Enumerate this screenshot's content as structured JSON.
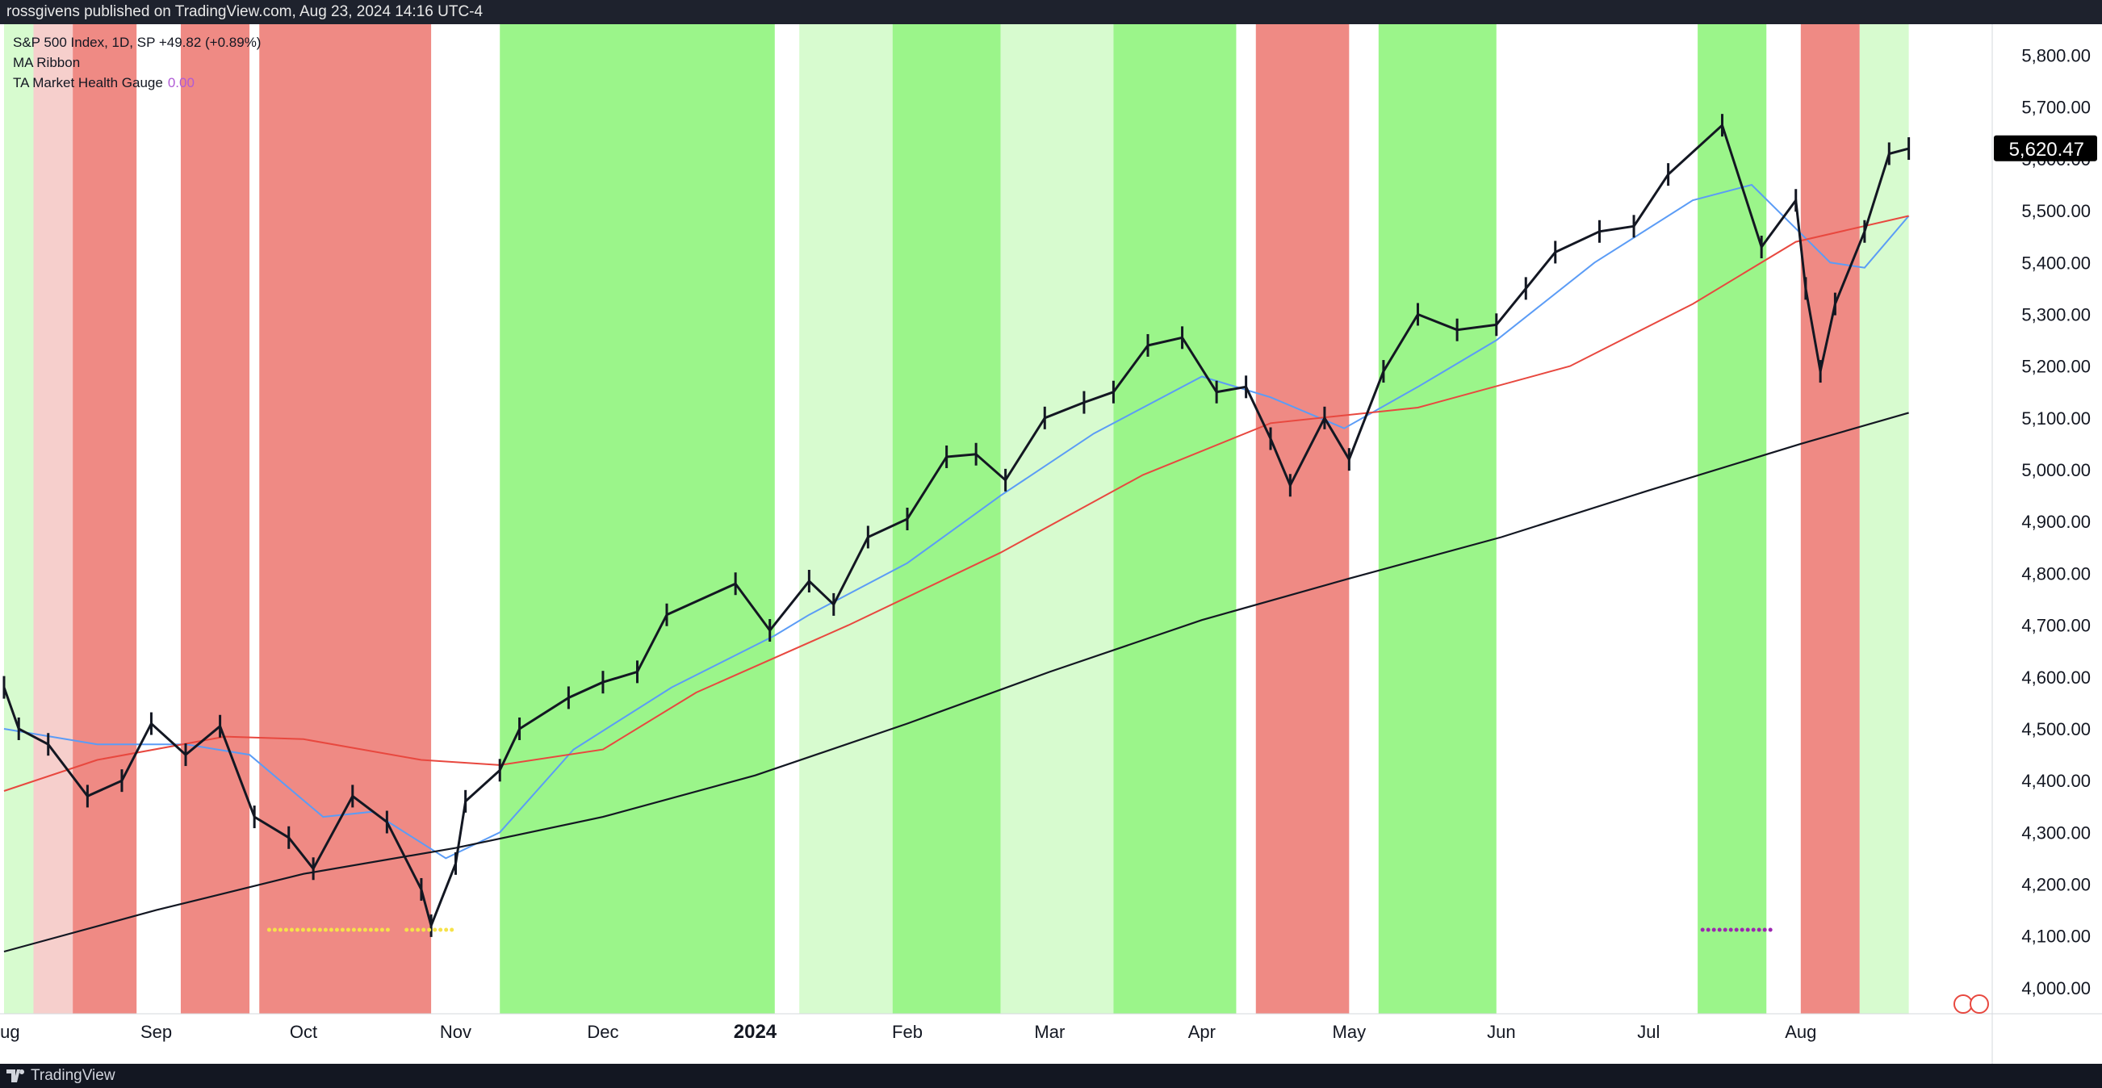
{
  "header": {
    "text": "rossgivens published on TradingView.com, Aug 23, 2024 14:16 UTC-4"
  },
  "legend": {
    "symbol_line": "S&P 500 Index, 1D, SP  +49.82 (+0.89%)",
    "ma_label": "MA Ribbon",
    "gauge_label": "TA Market Health Gauge",
    "gauge_value": "0.00"
  },
  "footer": {
    "brand": "TradingView"
  },
  "colors": {
    "price": "#131722",
    "ma_short": "#5b9cf6",
    "ma_mid": "#e8483f",
    "ma_long": "#131722",
    "band_strong_green": "#9bf58a",
    "band_light_green": "#d7fbcf",
    "band_strong_red": "#ef8a84",
    "band_light_red": "#f6cfcc",
    "price_tag_bg": "#000000",
    "dots_yellow": "#f6e24a",
    "dots_purple": "#9c27b0"
  },
  "chart_data": {
    "type": "line",
    "title": "S&P 500 Index, 1D, SP",
    "x_range": [
      "2023-08-01",
      "2024-09-09"
    ],
    "ylim": [
      3950,
      5860
    ],
    "y_ticks": [
      4000,
      4100,
      4200,
      4300,
      4400,
      4500,
      4600,
      4700,
      4800,
      4900,
      5000,
      5100,
      5200,
      5300,
      5400,
      5500,
      5600,
      5700,
      5800
    ],
    "y_tick_labels": [
      "4,000.00",
      "4,100.00",
      "4,200.00",
      "4,300.00",
      "4,400.00",
      "4,500.00",
      "4,600.00",
      "4,700.00",
      "4,800.00",
      "4,900.00",
      "5,000.00",
      "5,100.00",
      "5,200.00",
      "5,300.00",
      "5,400.00",
      "5,500.00",
      "5,600.00",
      "5,700.00",
      "5,800.00"
    ],
    "x_ticks": [
      {
        "date": "2023-08-01",
        "label": "Aug"
      },
      {
        "date": "2023-09-01",
        "label": "Sep"
      },
      {
        "date": "2023-10-01",
        "label": "Oct"
      },
      {
        "date": "2023-11-01",
        "label": "Nov"
      },
      {
        "date": "2023-12-01",
        "label": "Dec"
      },
      {
        "date": "2024-01-01",
        "label": "2024"
      },
      {
        "date": "2024-02-01",
        "label": "Feb"
      },
      {
        "date": "2024-03-01",
        "label": "Mar"
      },
      {
        "date": "2024-04-01",
        "label": "Apr"
      },
      {
        "date": "2024-05-01",
        "label": "May"
      },
      {
        "date": "2024-06-01",
        "label": "Jun"
      },
      {
        "date": "2024-07-01",
        "label": "Jul"
      },
      {
        "date": "2024-08-01",
        "label": "Aug"
      }
    ],
    "last_price": 5620.47,
    "last_price_label": "5,620.47",
    "price_series": [
      [
        "2023-08-01",
        4580
      ],
      [
        "2023-08-04",
        4500
      ],
      [
        "2023-08-10",
        4470
      ],
      [
        "2023-08-18",
        4370
      ],
      [
        "2023-08-25",
        4400
      ],
      [
        "2023-08-31",
        4510
      ],
      [
        "2023-09-07",
        4450
      ],
      [
        "2023-09-14",
        4505
      ],
      [
        "2023-09-21",
        4330
      ],
      [
        "2023-09-28",
        4290
      ],
      [
        "2023-10-03",
        4230
      ],
      [
        "2023-10-11",
        4370
      ],
      [
        "2023-10-18",
        4320
      ],
      [
        "2023-10-25",
        4190
      ],
      [
        "2023-10-27",
        4120
      ],
      [
        "2023-11-01",
        4240
      ],
      [
        "2023-11-03",
        4360
      ],
      [
        "2023-11-10",
        4420
      ],
      [
        "2023-11-14",
        4500
      ],
      [
        "2023-11-24",
        4560
      ],
      [
        "2023-12-01",
        4590
      ],
      [
        "2023-12-08",
        4610
      ],
      [
        "2023-12-14",
        4720
      ],
      [
        "2023-12-28",
        4780
      ],
      [
        "2024-01-04",
        4690
      ],
      [
        "2024-01-12",
        4785
      ],
      [
        "2024-01-17",
        4740
      ],
      [
        "2024-01-24",
        4870
      ],
      [
        "2024-02-01",
        4905
      ],
      [
        "2024-02-09",
        5025
      ],
      [
        "2024-02-15",
        5030
      ],
      [
        "2024-02-21",
        4980
      ],
      [
        "2024-02-29",
        5100
      ],
      [
        "2024-03-08",
        5130
      ],
      [
        "2024-03-14",
        5150
      ],
      [
        "2024-03-21",
        5240
      ],
      [
        "2024-03-28",
        5255
      ],
      [
        "2024-04-04",
        5150
      ],
      [
        "2024-04-10",
        5160
      ],
      [
        "2024-04-15",
        5060
      ],
      [
        "2024-04-19",
        4970
      ],
      [
        "2024-04-26",
        5100
      ],
      [
        "2024-05-01",
        5020
      ],
      [
        "2024-05-08",
        5190
      ],
      [
        "2024-05-15",
        5300
      ],
      [
        "2024-05-23",
        5270
      ],
      [
        "2024-05-31",
        5280
      ],
      [
        "2024-06-06",
        5350
      ],
      [
        "2024-06-12",
        5420
      ],
      [
        "2024-06-21",
        5460
      ],
      [
        "2024-06-28",
        5470
      ],
      [
        "2024-07-05",
        5570
      ],
      [
        "2024-07-16",
        5665
      ],
      [
        "2024-07-24",
        5430
      ],
      [
        "2024-07-31",
        5520
      ],
      [
        "2024-08-02",
        5350
      ],
      [
        "2024-08-05",
        5190
      ],
      [
        "2024-08-08",
        5320
      ],
      [
        "2024-08-14",
        5460
      ],
      [
        "2024-08-19",
        5610
      ],
      [
        "2024-08-23",
        5620
      ]
    ],
    "series": [
      {
        "values": [
          [
            "2023-08-01",
            4500
          ],
          [
            "2023-08-20",
            4470
          ],
          [
            "2023-09-07",
            4470
          ],
          [
            "2023-09-20",
            4450
          ],
          [
            "2023-10-05",
            4330
          ],
          [
            "2023-10-15",
            4340
          ],
          [
            "2023-10-30",
            4250
          ],
          [
            "2023-11-10",
            4300
          ],
          [
            "2023-11-25",
            4460
          ],
          [
            "2023-12-15",
            4580
          ],
          [
            "2024-01-05",
            4680
          ],
          [
            "2024-01-12",
            4720
          ],
          [
            "2024-02-01",
            4820
          ],
          [
            "2024-02-20",
            4950
          ],
          [
            "2024-03-10",
            5070
          ],
          [
            "2024-04-01",
            5180
          ],
          [
            "2024-04-15",
            5140
          ],
          [
            "2024-04-30",
            5080
          ],
          [
            "2024-05-15",
            5160
          ],
          [
            "2024-05-31",
            5250
          ],
          [
            "2024-06-20",
            5400
          ],
          [
            "2024-07-10",
            5520
          ],
          [
            "2024-07-22",
            5550
          ],
          [
            "2024-08-07",
            5400
          ],
          [
            "2024-08-14",
            5390
          ],
          [
            "2024-08-23",
            5490
          ]
        ]
      },
      {
        "values": [
          [
            "2023-08-01",
            4380
          ],
          [
            "2023-08-20",
            4440
          ],
          [
            "2023-09-15",
            4485
          ],
          [
            "2023-10-01",
            4480
          ],
          [
            "2023-10-25",
            4440
          ],
          [
            "2023-11-10",
            4430
          ],
          [
            "2023-12-01",
            4460
          ],
          [
            "2023-12-20",
            4570
          ],
          [
            "2024-01-20",
            4700
          ],
          [
            "2024-02-20",
            4840
          ],
          [
            "2024-03-20",
            4990
          ],
          [
            "2024-04-15",
            5090
          ],
          [
            "2024-05-15",
            5120
          ],
          [
            "2024-06-15",
            5200
          ],
          [
            "2024-07-10",
            5320
          ],
          [
            "2024-07-31",
            5440
          ],
          [
            "2024-08-23",
            5490
          ]
        ]
      },
      {
        "values": [
          [
            "2023-08-01",
            4070
          ],
          [
            "2023-09-01",
            4150
          ],
          [
            "2023-10-01",
            4220
          ],
          [
            "2023-11-01",
            4270
          ],
          [
            "2023-12-01",
            4330
          ],
          [
            "2024-01-01",
            4410
          ],
          [
            "2024-02-01",
            4510
          ],
          [
            "2024-03-01",
            4610
          ],
          [
            "2024-04-01",
            4710
          ],
          [
            "2024-05-01",
            4790
          ],
          [
            "2024-06-01",
            4870
          ],
          [
            "2024-07-01",
            4960
          ],
          [
            "2024-08-01",
            5050
          ],
          [
            "2024-08-23",
            5110
          ]
        ]
      }
    ],
    "regime_bands": [
      {
        "from": "2023-08-01",
        "to": "2023-08-07",
        "state": "light_green"
      },
      {
        "from": "2023-08-07",
        "to": "2023-08-15",
        "state": "light_red"
      },
      {
        "from": "2023-08-15",
        "to": "2023-08-28",
        "state": "strong_red"
      },
      {
        "from": "2023-09-06",
        "to": "2023-09-20",
        "state": "strong_red"
      },
      {
        "from": "2023-09-22",
        "to": "2023-10-27",
        "state": "strong_red"
      },
      {
        "from": "2023-11-10",
        "to": "2024-01-05",
        "state": "strong_green"
      },
      {
        "from": "2024-01-10",
        "to": "2024-01-29",
        "state": "light_green"
      },
      {
        "from": "2024-01-29",
        "to": "2024-02-20",
        "state": "strong_green"
      },
      {
        "from": "2024-02-20",
        "to": "2024-03-14",
        "state": "light_green"
      },
      {
        "from": "2024-03-14",
        "to": "2024-04-08",
        "state": "strong_green"
      },
      {
        "from": "2024-04-12",
        "to": "2024-05-01",
        "state": "strong_red"
      },
      {
        "from": "2024-05-07",
        "to": "2024-05-31",
        "state": "strong_green"
      },
      {
        "from": "2024-07-11",
        "to": "2024-07-25",
        "state": "strong_green"
      },
      {
        "from": "2024-08-01",
        "to": "2024-08-13",
        "state": "strong_red"
      },
      {
        "from": "2024-08-13",
        "to": "2024-08-23",
        "state": "light_green"
      }
    ]
  }
}
